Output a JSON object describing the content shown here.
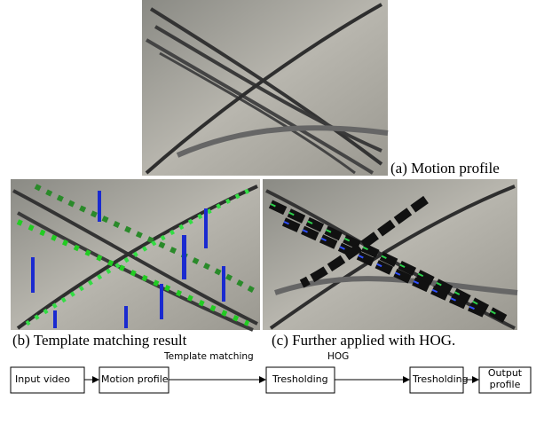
{
  "figure": {
    "panels": [
      {
        "caption": "(a) Motion profile"
      },
      {
        "caption": "(b) Template matching result"
      },
      {
        "caption": "(c) Further applied with HOG."
      }
    ],
    "flow": {
      "nodes": [
        {
          "label": "Input video"
        },
        {
          "label": "Motion profile"
        },
        {
          "label": "Tresholding"
        },
        {
          "label": "Tresholding"
        },
        {
          "label": "Output profile"
        }
      ],
      "edge_labels": [
        "Template matching",
        "HOG"
      ]
    }
  }
}
